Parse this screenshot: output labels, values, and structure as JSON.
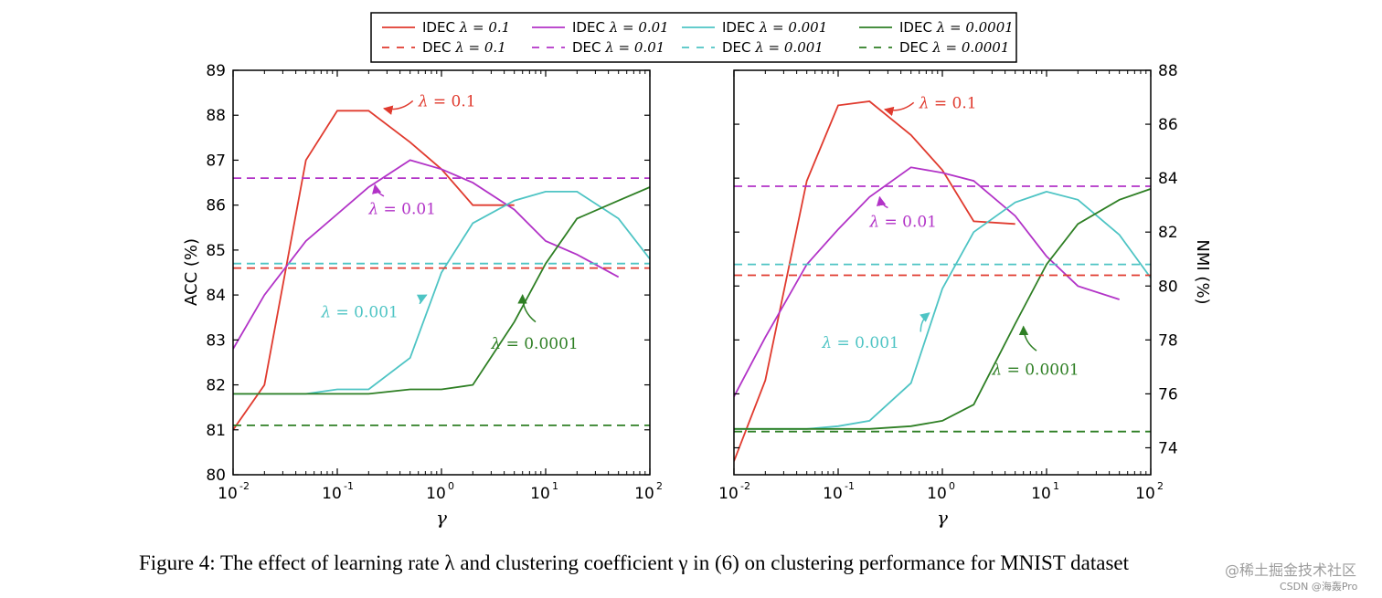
{
  "caption": "Figure 4: The effect of learning rate λ and clustering coefficient γ in (6) on clustering performance for MNIST dataset",
  "watermark": {
    "line1": "@稀土掘金技术社区",
    "line2": "CSDN @海轰Pro"
  },
  "colors": {
    "red": "#e03a2e",
    "purple": "#b233c7",
    "cyan": "#4ec4c4",
    "green": "#2e7f24"
  },
  "legend": {
    "entries": [
      {
        "prefix": "IDEC",
        "lambda": "λ = 0.1",
        "style": "solid",
        "color": "#e03a2e"
      },
      {
        "prefix": "IDEC",
        "lambda": "λ = 0.01",
        "style": "solid",
        "color": "#b233c7"
      },
      {
        "prefix": "IDEC",
        "lambda": "λ = 0.001",
        "style": "solid",
        "color": "#4ec4c4"
      },
      {
        "prefix": "IDEC",
        "lambda": "λ = 0.0001",
        "style": "solid",
        "color": "#2e7f24"
      },
      {
        "prefix": "DEC",
        "lambda": "λ = 0.1",
        "style": "dashed",
        "color": "#e03a2e"
      },
      {
        "prefix": "DEC",
        "lambda": "λ = 0.01",
        "style": "dashed",
        "color": "#b233c7"
      },
      {
        "prefix": "DEC",
        "lambda": "λ = 0.001",
        "style": "dashed",
        "color": "#4ec4c4"
      },
      {
        "prefix": "DEC",
        "lambda": "λ = 0.0001",
        "style": "dashed",
        "color": "#2e7f24"
      }
    ]
  },
  "chart_data": [
    {
      "type": "line",
      "xscale": "log",
      "xlabel": "γ",
      "ylabel": "ACC (%)",
      "xlim": [
        0.01,
        100
      ],
      "ylim": [
        80,
        89
      ],
      "yticks": [
        80,
        81,
        82,
        83,
        84,
        85,
        86,
        87,
        88,
        89
      ],
      "xticks": [
        {
          "base": "10",
          "exp": "-2"
        },
        {
          "base": "10",
          "exp": "-1"
        },
        {
          "base": "10",
          "exp": "0"
        },
        {
          "base": "10",
          "exp": "1"
        },
        {
          "base": "10",
          "exp": "2"
        }
      ],
      "series": [
        {
          "name": "IDEC λ=0.1",
          "color": "#e03a2e",
          "style": "solid",
          "x": [
            0.01,
            0.02,
            0.05,
            0.1,
            0.2,
            0.5,
            1,
            2,
            5
          ],
          "y": [
            81.0,
            82.0,
            87.0,
            88.1,
            88.1,
            87.4,
            86.8,
            86.0,
            86.0
          ]
        },
        {
          "name": "IDEC λ=0.01",
          "color": "#b233c7",
          "style": "solid",
          "x": [
            0.01,
            0.02,
            0.05,
            0.1,
            0.2,
            0.5,
            1,
            2,
            5,
            10,
            20,
            50
          ],
          "y": [
            82.8,
            84.0,
            85.2,
            85.8,
            86.4,
            87.0,
            86.8,
            86.5,
            85.9,
            85.2,
            84.9,
            84.4
          ]
        },
        {
          "name": "IDEC λ=0.001",
          "color": "#4ec4c4",
          "style": "solid",
          "x": [
            0.01,
            0.02,
            0.05,
            0.1,
            0.2,
            0.5,
            1,
            2,
            5,
            10,
            20,
            50,
            100
          ],
          "y": [
            81.8,
            81.8,
            81.8,
            81.9,
            81.9,
            82.6,
            84.5,
            85.6,
            86.1,
            86.3,
            86.3,
            85.7,
            84.8
          ]
        },
        {
          "name": "IDEC λ=0.0001",
          "color": "#2e7f24",
          "style": "solid",
          "x": [
            0.01,
            0.02,
            0.05,
            0.1,
            0.2,
            0.5,
            1,
            2,
            5,
            10,
            20,
            50,
            100
          ],
          "y": [
            81.8,
            81.8,
            81.8,
            81.8,
            81.8,
            81.9,
            81.9,
            82.0,
            83.4,
            84.7,
            85.7,
            86.1,
            86.4
          ]
        },
        {
          "name": "DEC λ=0.1",
          "color": "#e03a2e",
          "style": "dashed",
          "x": [
            0.01,
            100
          ],
          "y": [
            84.6,
            84.6
          ]
        },
        {
          "name": "DEC λ=0.01",
          "color": "#b233c7",
          "style": "dashed",
          "x": [
            0.01,
            100
          ],
          "y": [
            86.6,
            86.6
          ]
        },
        {
          "name": "DEC λ=0.001",
          "color": "#4ec4c4",
          "style": "dashed",
          "x": [
            0.01,
            100
          ],
          "y": [
            84.7,
            84.7
          ]
        },
        {
          "name": "DEC λ=0.0001",
          "color": "#2e7f24",
          "style": "dashed",
          "x": [
            0.01,
            100
          ],
          "y": [
            81.1,
            81.1
          ]
        }
      ],
      "annotations": [
        {
          "text": "λ = 0.1",
          "color": "#e03a2e",
          "x": 0.6,
          "y": 88.2,
          "arrow_to": [
            0.28,
            88.15
          ]
        },
        {
          "text": "λ = 0.01",
          "color": "#b233c7",
          "x": 0.2,
          "y": 85.8,
          "arrow_from": [
            0.28,
            86.2
          ],
          "arrow_to": [
            0.23,
            86.45
          ]
        },
        {
          "text": "λ = 0.001",
          "color": "#4ec4c4",
          "x": 0.07,
          "y": 83.5,
          "arrow_from": [
            0.62,
            83.8
          ],
          "arrow_to": [
            0.72,
            84.0
          ]
        },
        {
          "text": "λ = 0.0001",
          "color": "#2e7f24",
          "x": 3.0,
          "y": 82.8,
          "arrow_from": [
            8.0,
            83.4
          ],
          "arrow_to": [
            6.0,
            84.0
          ]
        }
      ]
    },
    {
      "type": "line",
      "xscale": "log",
      "xlabel": "γ",
      "ylabel": "NMI (%)",
      "xlim": [
        0.01,
        100
      ],
      "ylim": [
        73,
        88
      ],
      "yticks": [
        74,
        76,
        78,
        80,
        82,
        84,
        86,
        88
      ],
      "xticks": [
        {
          "base": "10",
          "exp": "-2"
        },
        {
          "base": "10",
          "exp": "-1"
        },
        {
          "base": "10",
          "exp": "0"
        },
        {
          "base": "10",
          "exp": "1"
        },
        {
          "base": "10",
          "exp": "2"
        }
      ],
      "series": [
        {
          "name": "IDEC λ=0.1",
          "color": "#e03a2e",
          "style": "solid",
          "x": [
            0.01,
            0.02,
            0.05,
            0.1,
            0.2,
            0.5,
            1,
            2,
            5
          ],
          "y": [
            73.5,
            76.5,
            83.9,
            86.7,
            86.85,
            85.6,
            84.3,
            82.4,
            82.3
          ]
        },
        {
          "name": "IDEC λ=0.01",
          "color": "#b233c7",
          "style": "solid",
          "x": [
            0.01,
            0.02,
            0.05,
            0.1,
            0.2,
            0.5,
            1,
            2,
            5,
            10,
            20,
            50
          ],
          "y": [
            75.9,
            78.1,
            80.8,
            82.1,
            83.3,
            84.4,
            84.2,
            83.9,
            82.6,
            81.1,
            80.0,
            79.5
          ]
        },
        {
          "name": "IDEC λ=0.001",
          "color": "#4ec4c4",
          "style": "solid",
          "x": [
            0.01,
            0.02,
            0.05,
            0.1,
            0.2,
            0.5,
            1,
            2,
            5,
            10,
            20,
            50,
            100
          ],
          "y": [
            74.7,
            74.7,
            74.7,
            74.8,
            75.0,
            76.4,
            79.9,
            82.0,
            83.1,
            83.5,
            83.2,
            81.9,
            80.3
          ]
        },
        {
          "name": "IDEC λ=0.0001",
          "color": "#2e7f24",
          "style": "solid",
          "x": [
            0.01,
            0.02,
            0.05,
            0.1,
            0.2,
            0.5,
            1,
            2,
            5,
            10,
            20,
            50,
            100
          ],
          "y": [
            74.7,
            74.7,
            74.7,
            74.7,
            74.7,
            74.8,
            75.0,
            75.6,
            78.6,
            80.8,
            82.3,
            83.2,
            83.6
          ]
        },
        {
          "name": "DEC λ=0.1",
          "color": "#e03a2e",
          "style": "dashed",
          "x": [
            0.01,
            100
          ],
          "y": [
            80.4,
            80.4
          ]
        },
        {
          "name": "DEC λ=0.01",
          "color": "#b233c7",
          "style": "dashed",
          "x": [
            0.01,
            100
          ],
          "y": [
            83.7,
            83.7
          ]
        },
        {
          "name": "DEC λ=0.001",
          "color": "#4ec4c4",
          "style": "dashed",
          "x": [
            0.01,
            100
          ],
          "y": [
            80.8,
            80.8
          ]
        },
        {
          "name": "DEC λ=0.0001",
          "color": "#2e7f24",
          "style": "dashed",
          "x": [
            0.01,
            100
          ],
          "y": [
            74.6,
            74.6
          ]
        }
      ],
      "annotations": [
        {
          "text": "λ = 0.1",
          "color": "#e03a2e",
          "x": 0.6,
          "y": 86.6,
          "arrow_to": [
            0.28,
            86.55
          ]
        },
        {
          "text": "λ = 0.01",
          "color": "#b233c7",
          "x": 0.2,
          "y": 82.2,
          "arrow_from": [
            0.3,
            82.9
          ],
          "arrow_to": [
            0.25,
            83.3
          ]
        },
        {
          "text": "λ = 0.001",
          "color": "#4ec4c4",
          "x": 0.07,
          "y": 77.7,
          "arrow_from": [
            0.62,
            78.3
          ],
          "arrow_to": [
            0.75,
            79.0
          ]
        },
        {
          "text": "λ = 0.0001",
          "color": "#2e7f24",
          "x": 3.0,
          "y": 76.7,
          "arrow_from": [
            8.0,
            77.6
          ],
          "arrow_to": [
            6.0,
            78.5
          ]
        }
      ]
    }
  ]
}
